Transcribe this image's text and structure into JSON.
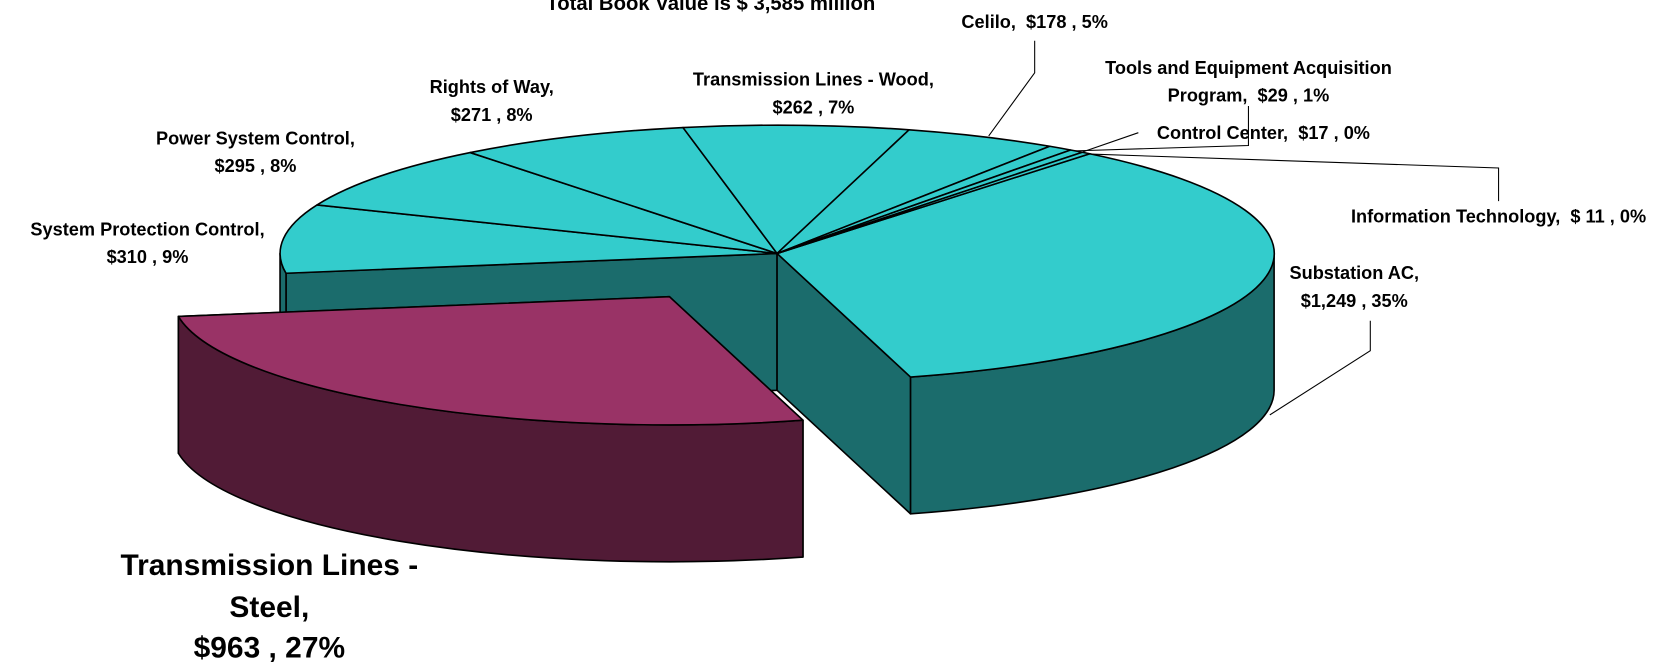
{
  "chart_data": {
    "type": "pie3d",
    "title": "Total Book Value is $ 3,585 million",
    "categories": [
      "Substation AC,",
      "Transmission Lines - Steel,",
      "System Protection Control,",
      "Power System Control,",
      "Rights of Way,",
      "Transmission Lines - Wood,",
      "Celilo,",
      "Tools and Equipment Acquisition Program,",
      "Control Center,",
      "Information Technology,"
    ],
    "values": [
      1249,
      963,
      310,
      295,
      271,
      262,
      178,
      29,
      17,
      11
    ],
    "value_labels": [
      "$1,249",
      "$963",
      "$310",
      "$295",
      "$271",
      "$262",
      "$178",
      "$29",
      "$17",
      "$ 11"
    ],
    "percents": [
      35,
      27,
      9,
      8,
      8,
      7,
      5,
      1,
      0,
      0
    ],
    "percent_labels": [
      "35%",
      "27%",
      "9%",
      "8%",
      "8%",
      "7%",
      "5%",
      "1%",
      "0%",
      "0%"
    ],
    "colors": [
      "#33CCCC",
      "#993366",
      "#33CCCC",
      "#33CCCC",
      "#33CCCC",
      "#33CCCC",
      "#33CCCC",
      "#33CCCC",
      "#33CCCC",
      "#33CCCC"
    ]
  }
}
